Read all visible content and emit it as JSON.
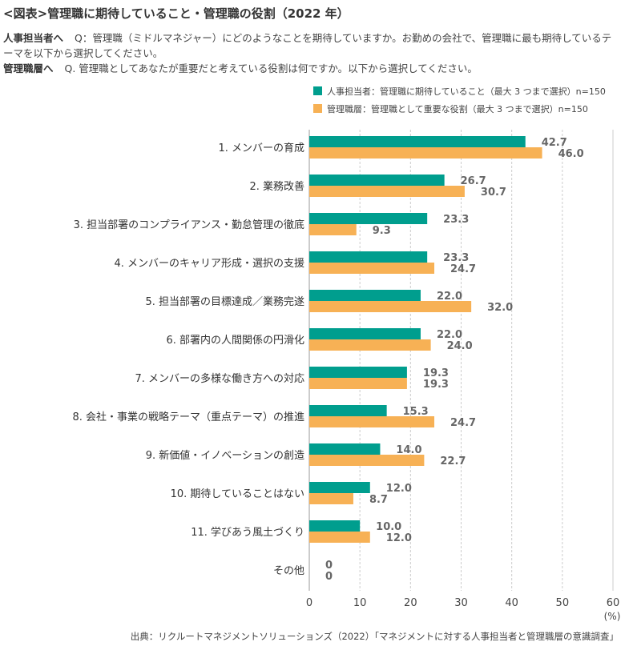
{
  "title": "<図表>管理職に期待していること・管理職の役割（2022 年）",
  "questions": [
    {
      "respondent": "人事担当者へ",
      "text": "Q：管理職（ミドルマネジャー）にどのようなことを期待していますか。お勤めの会社で、管理職に最も期待しているテーマを以下から選択してください。"
    },
    {
      "respondent": "管理職層へ",
      "text": "Q. 管理職としてあなたが重要だと考えている役割は何ですか。以下から選択してください。"
    }
  ],
  "footer": "出典：リクルートマネジメントソリューションズ（2022）「マネジメントに対する人事担当者と管理職層の意識調査」",
  "colors": {
    "hr": "#009e8e",
    "manager": "#f7b155",
    "grid": "#cccccc",
    "axis": "#999999"
  },
  "chart_data": {
    "type": "bar",
    "orientation": "horizontal",
    "categories": [
      "1. メンバーの育成",
      "2. 業務改善",
      "3. 担当部署のコンプライアンス・勤怠管理の徹底",
      "4. メンバーのキャリア形成・選択の支援",
      "5. 担当部署の目標達成／業務完遂",
      "6. 部署内の人間関係の円滑化",
      "7. メンバーの多様な働き方への対応",
      "8. 会社・事業の戦略テーマ（重点テーマ）の推進",
      "9. 新価値・イノベーションの創造",
      "10. 期待していることはない",
      "11. 学びあう風土づくり",
      "その他"
    ],
    "series": [
      {
        "name": "人事担当者：管理職に期待していること（最大 3 つまで選択）n=150",
        "values": [
          42.7,
          26.7,
          23.3,
          23.3,
          22.0,
          22.0,
          19.3,
          15.3,
          14.0,
          12.0,
          10.0,
          0
        ]
      },
      {
        "name": "管理職層：管理職として重要な役割（最大 3 つまで選択）n=150",
        "values": [
          46.0,
          30.7,
          9.3,
          24.7,
          32.0,
          24.0,
          19.3,
          24.7,
          22.7,
          8.7,
          12.0,
          0
        ]
      }
    ],
    "value_labels": [
      [
        "42.7",
        "26.7",
        "23.3",
        "23.3",
        "22.0",
        "22.0",
        "19.3",
        "15.3",
        "14.0",
        "12.0",
        "10.0",
        "0"
      ],
      [
        "46.0",
        "30.7",
        "9.3",
        "24.7",
        "32.0",
        "24.0",
        "19.3",
        "24.7",
        "22.7",
        "8.7",
        "12.0",
        "0"
      ]
    ],
    "xlim": [
      0,
      60
    ],
    "xticks": [
      "0",
      "10",
      "20",
      "30",
      "40",
      "50",
      "60"
    ],
    "xunit": "(%)",
    "grid": true,
    "legend": "top-right"
  }
}
